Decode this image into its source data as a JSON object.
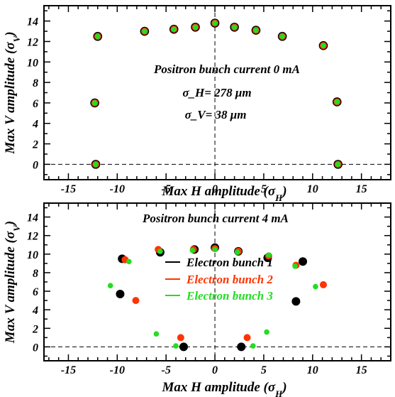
{
  "chart_data": [
    {
      "type": "scatter",
      "title": "",
      "xlabel": "Max H amplitude (σ_H)",
      "ylabel": "Max V amplitude (σ_V)",
      "xlim": [
        -17.5,
        18
      ],
      "ylim": [
        -1.5,
        15.5
      ],
      "xticks": [
        -15,
        -10,
        -5,
        0,
        5,
        10,
        15
      ],
      "yticks": [
        0,
        2,
        4,
        6,
        8,
        10,
        12,
        14
      ],
      "grid": false,
      "annotations": [
        "Positron bunch current  0 mA",
        "σ_H= 278 μm",
        "σ_V= 38 μm"
      ],
      "series": [
        {
          "color": "#000000",
          "points": [
            [
              -12.2,
              0
            ],
            [
              -12.3,
              6
            ],
            [
              -12.0,
              12.5
            ],
            [
              -7.2,
              13
            ],
            [
              -4.2,
              13.2
            ],
            [
              -2.0,
              13.4
            ],
            [
              0,
              13.8
            ],
            [
              2.0,
              13.4
            ],
            [
              4.2,
              13.1
            ],
            [
              6.9,
              12.5
            ],
            [
              11.1,
              11.6
            ],
            [
              12.5,
              6.1
            ],
            [
              12.6,
              0
            ]
          ]
        },
        {
          "color": "#ff3300",
          "points": [
            [
              -12.2,
              0
            ],
            [
              -12.3,
              6
            ],
            [
              -12.0,
              12.5
            ],
            [
              -7.2,
              13
            ],
            [
              -4.2,
              13.2
            ],
            [
              -2.0,
              13.4
            ],
            [
              0,
              13.8
            ],
            [
              2.0,
              13.4
            ],
            [
              4.2,
              13.1
            ],
            [
              6.9,
              12.5
            ],
            [
              11.1,
              11.6
            ],
            [
              12.5,
              6.1
            ],
            [
              12.6,
              0
            ]
          ]
        },
        {
          "color": "#22dd22",
          "points": [
            [
              -12.2,
              0
            ],
            [
              -12.3,
              6
            ],
            [
              -12.0,
              12.5
            ],
            [
              -7.2,
              13
            ],
            [
              -4.2,
              13.2
            ],
            [
              -2.0,
              13.4
            ],
            [
              0,
              13.8
            ],
            [
              2.0,
              13.4
            ],
            [
              4.2,
              13.1
            ],
            [
              6.9,
              12.5
            ],
            [
              11.1,
              11.6
            ],
            [
              12.5,
              6.1
            ],
            [
              12.6,
              0
            ]
          ]
        }
      ]
    },
    {
      "type": "scatter",
      "title": "Positron bunch current  4 mA",
      "xlabel": "Max H amplitude (σ_H)",
      "ylabel": "Max V amplitude (σ_V)",
      "xlim": [
        -17.5,
        18
      ],
      "ylim": [
        -1.5,
        15.5
      ],
      "xticks": [
        -15,
        -10,
        -5,
        0,
        5,
        10,
        15
      ],
      "yticks": [
        0,
        2,
        4,
        6,
        8,
        10,
        12,
        14
      ],
      "grid": false,
      "legend": "center",
      "series": [
        {
          "name": "Electron bunch 1",
          "color": "#000000",
          "points": [
            [
              -9.5,
              9.5
            ],
            [
              -9.7,
              5.7
            ],
            [
              -5.6,
              10.2
            ],
            [
              -3.2,
              0
            ],
            [
              -2.1,
              10.5
            ],
            [
              0,
              10.7
            ],
            [
              2.7,
              0
            ],
            [
              2.4,
              10.3
            ],
            [
              5.4,
              9.6
            ],
            [
              8.3,
              4.9
            ],
            [
              9.0,
              9.2
            ]
          ]
        },
        {
          "name": "Electron bunch 2",
          "color": "#ff3300",
          "points": [
            [
              -9.2,
              9.4
            ],
            [
              -8.1,
              5
            ],
            [
              -5.8,
              10.5
            ],
            [
              -3.5,
              1
            ],
            [
              -2.2,
              10.5
            ],
            [
              0,
              10.6
            ],
            [
              3.3,
              1
            ],
            [
              2.4,
              10.3
            ],
            [
              5.5,
              9.8
            ],
            [
              8.3,
              8.8
            ],
            [
              11.1,
              6.7
            ]
          ]
        },
        {
          "name": "Electron bunch 3",
          "color": "#22dd22",
          "points": [
            [
              -8.8,
              9.2
            ],
            [
              -10.7,
              6.6
            ],
            [
              -6.0,
              1.4
            ],
            [
              -5.6,
              10.3
            ],
            [
              -4.0,
              0.1
            ],
            [
              -2.3,
              10.4
            ],
            [
              0,
              10.5
            ],
            [
              3.9,
              0.1
            ],
            [
              2.3,
              10.2
            ],
            [
              5.3,
              1.6
            ],
            [
              5.5,
              9.9
            ],
            [
              8.2,
              8.7
            ],
            [
              10.3,
              6.5
            ]
          ]
        }
      ]
    }
  ]
}
